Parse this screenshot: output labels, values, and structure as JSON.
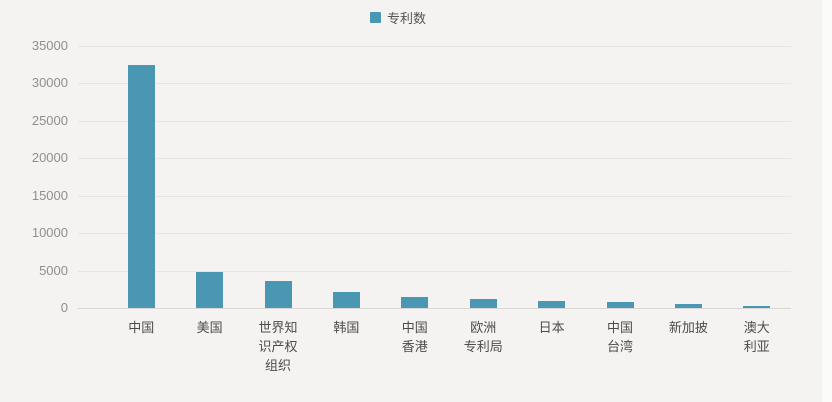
{
  "legend": {
    "label": "专利数"
  },
  "colors": {
    "background": "#f4f3f2",
    "bar": "#4a97b4",
    "gridline": "#e6e5e3",
    "axis_line": "#d8d7d5",
    "y_tick_text": "#8f8f8f",
    "x_label_text": "#4c4c4c"
  },
  "chart_data": {
    "type": "bar",
    "title": "",
    "legend": "专利数",
    "categories": [
      "中国",
      "美国",
      "世界知识产权组织",
      "韩国",
      "中国香港",
      "欧洲专利局",
      "日本",
      "中国台湾",
      "新加披",
      "澳大利亚"
    ],
    "labels_display": [
      "中国",
      "美国",
      "世界知\n识产权\n组织",
      "韩国",
      "中国\n香港",
      "欧洲\n专利局",
      "日本",
      "中国\n台湾",
      "新加披",
      "澳大\n利亚"
    ],
    "values": [
      32500,
      4800,
      3600,
      2200,
      1450,
      1200,
      900,
      850,
      570,
      280
    ],
    "yticks": [
      0,
      5000,
      10000,
      15000,
      20000,
      25000,
      30000,
      35000
    ],
    "ylim": [
      0,
      35000
    ],
    "xlabel": "",
    "ylabel": "",
    "grid": "horizontal",
    "legend_position": "top-center",
    "bar_color": "#4a97b4"
  }
}
